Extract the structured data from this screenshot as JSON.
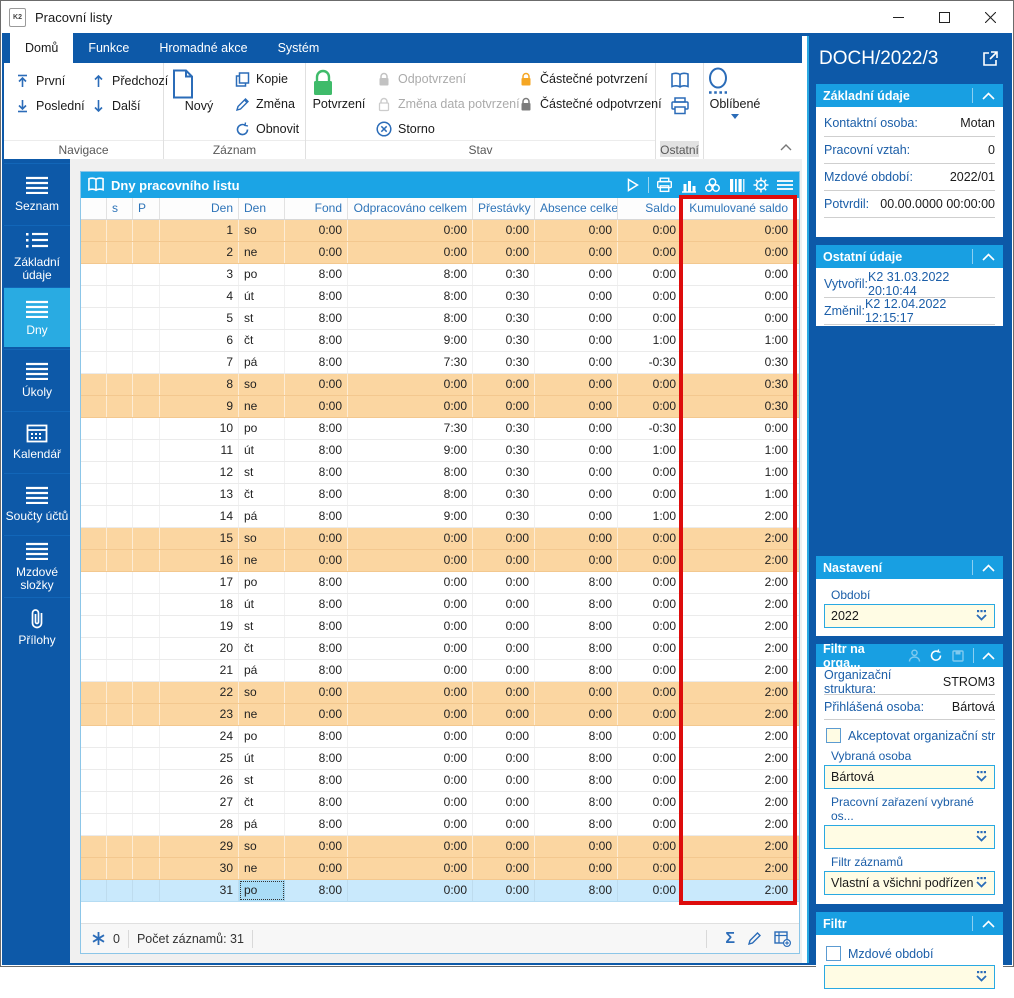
{
  "window": {
    "title": "Pracovní listy",
    "minimize": "—",
    "maximize": "▢",
    "close": "✕"
  },
  "ribbon": {
    "tabs": [
      {
        "label": "Domů",
        "active": true
      },
      {
        "label": "Funkce"
      },
      {
        "label": "Hromadné akce"
      },
      {
        "label": "Systém"
      }
    ],
    "tab_domu": "Domů",
    "tab_funkce": "Funkce",
    "tab_hromadne": "Hromadné akce",
    "tab_system": "Systém",
    "btn_prvni": "První",
    "btn_predchozi": "Předchozí",
    "btn_posledni": "Poslední",
    "btn_dalsi": "Další",
    "btn_novy": "Nový",
    "btn_kopie": "Kopie",
    "btn_zmena": "Změna",
    "btn_obnovit": "Obnovit",
    "btn_potvrzeni": "Potvrzení",
    "btn_odpotvrzeni": "Odpotvrzení",
    "btn_zmena_data": "Změna data potvrzení",
    "btn_storno": "Storno",
    "btn_castecne_potvrzeni": "Částečné potvrzení",
    "btn_castecne_odpotvrzeni": "Částečné odpotvrzení",
    "btn_oblibene": "Oblíbené",
    "grp_navigace": "Navigace",
    "grp_zaznam": "Záznam",
    "grp_stav": "Stav",
    "grp_ostatni": "Ostatní"
  },
  "sidebar": {
    "items": [
      {
        "label": "Seznam",
        "icon": "menu",
        "active": false
      },
      {
        "label": "Základní údaje",
        "icon": "menu-dotted",
        "active": false
      },
      {
        "label": "Dny",
        "icon": "menu",
        "active": true
      },
      {
        "label": "Úkoly",
        "icon": "menu",
        "active": false
      },
      {
        "label": "Kalendář",
        "icon": "calendar",
        "active": false
      },
      {
        "label": "Součty účtů",
        "icon": "menu",
        "active": false
      },
      {
        "label": "Mzdové složky",
        "icon": "menu",
        "active": false
      },
      {
        "label": "Přílohy",
        "icon": "paperclip",
        "active": false
      }
    ]
  },
  "table": {
    "title": "Dny pracovního listu",
    "columns": [
      "",
      "s",
      "P",
      "Den",
      "Den",
      "Fond",
      "Odpracováno celkem",
      "Přestávky",
      "Absence celkem",
      "Saldo",
      "Kumulované saldo"
    ],
    "highlighted_column": "Kumulované saldo",
    "rows": [
      {
        "d": 1,
        "day": "so",
        "f": "0:00",
        "o": "0:00",
        "p": "0:00",
        "a": "0:00",
        "s": "0:00",
        "k": "0:00",
        "w": true
      },
      {
        "d": 2,
        "day": "ne",
        "f": "0:00",
        "o": "0:00",
        "p": "0:00",
        "a": "0:00",
        "s": "0:00",
        "k": "0:00",
        "w": true
      },
      {
        "d": 3,
        "day": "po",
        "f": "8:00",
        "o": "8:00",
        "p": "0:30",
        "a": "0:00",
        "s": "0:00",
        "k": "0:00",
        "w": false
      },
      {
        "d": 4,
        "day": "út",
        "f": "8:00",
        "o": "8:00",
        "p": "0:30",
        "a": "0:00",
        "s": "0:00",
        "k": "0:00",
        "w": false
      },
      {
        "d": 5,
        "day": "st",
        "f": "8:00",
        "o": "8:00",
        "p": "0:30",
        "a": "0:00",
        "s": "0:00",
        "k": "0:00",
        "w": false
      },
      {
        "d": 6,
        "day": "čt",
        "f": "8:00",
        "o": "9:00",
        "p": "0:30",
        "a": "0:00",
        "s": "1:00",
        "k": "1:00",
        "w": false
      },
      {
        "d": 7,
        "day": "pá",
        "f": "8:00",
        "o": "7:30",
        "p": "0:30",
        "a": "0:00",
        "s": "-0:30",
        "k": "0:30",
        "w": false
      },
      {
        "d": 8,
        "day": "so",
        "f": "0:00",
        "o": "0:00",
        "p": "0:00",
        "a": "0:00",
        "s": "0:00",
        "k": "0:30",
        "w": true
      },
      {
        "d": 9,
        "day": "ne",
        "f": "0:00",
        "o": "0:00",
        "p": "0:00",
        "a": "0:00",
        "s": "0:00",
        "k": "0:30",
        "w": true
      },
      {
        "d": 10,
        "day": "po",
        "f": "8:00",
        "o": "7:30",
        "p": "0:30",
        "a": "0:00",
        "s": "-0:30",
        "k": "0:00",
        "w": false
      },
      {
        "d": 11,
        "day": "út",
        "f": "8:00",
        "o": "9:00",
        "p": "0:30",
        "a": "0:00",
        "s": "1:00",
        "k": "1:00",
        "w": false
      },
      {
        "d": 12,
        "day": "st",
        "f": "8:00",
        "o": "8:00",
        "p": "0:30",
        "a": "0:00",
        "s": "0:00",
        "k": "1:00",
        "w": false
      },
      {
        "d": 13,
        "day": "čt",
        "f": "8:00",
        "o": "8:00",
        "p": "0:30",
        "a": "0:00",
        "s": "0:00",
        "k": "1:00",
        "w": false
      },
      {
        "d": 14,
        "day": "pá",
        "f": "8:00",
        "o": "9:00",
        "p": "0:30",
        "a": "0:00",
        "s": "1:00",
        "k": "2:00",
        "w": false
      },
      {
        "d": 15,
        "day": "so",
        "f": "0:00",
        "o": "0:00",
        "p": "0:00",
        "a": "0:00",
        "s": "0:00",
        "k": "2:00",
        "w": true
      },
      {
        "d": 16,
        "day": "ne",
        "f": "0:00",
        "o": "0:00",
        "p": "0:00",
        "a": "0:00",
        "s": "0:00",
        "k": "2:00",
        "w": true
      },
      {
        "d": 17,
        "day": "po",
        "f": "8:00",
        "o": "0:00",
        "p": "0:00",
        "a": "8:00",
        "s": "0:00",
        "k": "2:00",
        "w": false
      },
      {
        "d": 18,
        "day": "út",
        "f": "8:00",
        "o": "0:00",
        "p": "0:00",
        "a": "8:00",
        "s": "0:00",
        "k": "2:00",
        "w": false
      },
      {
        "d": 19,
        "day": "st",
        "f": "8:00",
        "o": "0:00",
        "p": "0:00",
        "a": "8:00",
        "s": "0:00",
        "k": "2:00",
        "w": false
      },
      {
        "d": 20,
        "day": "čt",
        "f": "8:00",
        "o": "0:00",
        "p": "0:00",
        "a": "8:00",
        "s": "0:00",
        "k": "2:00",
        "w": false
      },
      {
        "d": 21,
        "day": "pá",
        "f": "8:00",
        "o": "0:00",
        "p": "0:00",
        "a": "8:00",
        "s": "0:00",
        "k": "2:00",
        "w": false
      },
      {
        "d": 22,
        "day": "so",
        "f": "0:00",
        "o": "0:00",
        "p": "0:00",
        "a": "0:00",
        "s": "0:00",
        "k": "2:00",
        "w": true
      },
      {
        "d": 23,
        "day": "ne",
        "f": "0:00",
        "o": "0:00",
        "p": "0:00",
        "a": "0:00",
        "s": "0:00",
        "k": "2:00",
        "w": true
      },
      {
        "d": 24,
        "day": "po",
        "f": "8:00",
        "o": "0:00",
        "p": "0:00",
        "a": "8:00",
        "s": "0:00",
        "k": "2:00",
        "w": false
      },
      {
        "d": 25,
        "day": "út",
        "f": "8:00",
        "o": "0:00",
        "p": "0:00",
        "a": "8:00",
        "s": "0:00",
        "k": "2:00",
        "w": false
      },
      {
        "d": 26,
        "day": "st",
        "f": "8:00",
        "o": "0:00",
        "p": "0:00",
        "a": "8:00",
        "s": "0:00",
        "k": "2:00",
        "w": false
      },
      {
        "d": 27,
        "day": "čt",
        "f": "8:00",
        "o": "0:00",
        "p": "0:00",
        "a": "8:00",
        "s": "0:00",
        "k": "2:00",
        "w": false
      },
      {
        "d": 28,
        "day": "pá",
        "f": "8:00",
        "o": "0:00",
        "p": "0:00",
        "a": "8:00",
        "s": "0:00",
        "k": "2:00",
        "w": false
      },
      {
        "d": 29,
        "day": "so",
        "f": "0:00",
        "o": "0:00",
        "p": "0:00",
        "a": "0:00",
        "s": "0:00",
        "k": "2:00",
        "w": true
      },
      {
        "d": 30,
        "day": "ne",
        "f": "0:00",
        "o": "0:00",
        "p": "0:00",
        "a": "0:00",
        "s": "0:00",
        "k": "2:00",
        "w": true
      },
      {
        "d": 31,
        "day": "po",
        "f": "8:00",
        "o": "0:00",
        "p": "0:00",
        "a": "8:00",
        "s": "0:00",
        "k": "2:00",
        "w": false,
        "selected": true
      }
    ],
    "status": {
      "star_count": "0",
      "record_count": "Počet záznamů: 31"
    }
  },
  "right_panel": {
    "record_title": "DOCH/2022/3",
    "zakladni": {
      "title": "Základní údaje",
      "fields": [
        [
          "Kontaktní osoba:",
          "Motan"
        ],
        [
          "Pracovní vztah:",
          "0"
        ],
        [
          "Mzdové období:",
          "2022/01"
        ],
        [
          "Potvrdil:",
          "00.00.0000 00:00:00"
        ]
      ]
    },
    "ostatni": {
      "title": "Ostatní údaje",
      "fields": [
        [
          "Vytvořil:",
          "K2 31.03.2022 20:10:44"
        ],
        [
          "Změnil:",
          "K2 12.04.2022 12:15:17"
        ]
      ]
    },
    "nastaveni": {
      "title": "Nastavení",
      "obdobi_label": "Období",
      "obdobi_value": "2022"
    },
    "filtr_org": {
      "title": "Filtr na orga...",
      "org_label": "Organizační struktura:",
      "org_value": "STROM3",
      "osoba_label": "Přihlášená osoba:",
      "osoba_value": "Bártová",
      "checkbox_label": "Akceptovat organizační str...",
      "vybrana_label": "Vybraná osoba",
      "vybrana_value": "Bártová",
      "zarazeni_label": "Pracovní zařazení vybrané os...",
      "zarazeni_value": "",
      "filtr_zaznamu_label": "Filtr záznamů",
      "filtr_zaznamu_value": "Vlastní a všichni podřízení"
    },
    "filtr": {
      "title": "Filtr",
      "checkbox_label": "Mzdové období",
      "value": ""
    }
  },
  "icons": {
    "k2-logo": "K2 document badge",
    "minimize-icon": "—",
    "maximize-icon": "□",
    "close-icon": "✕",
    "first-icon": "arrow up to bar",
    "last-icon": "arrow down to bar",
    "previous-icon": "arrow up",
    "next-icon": "arrow down",
    "new-document-icon": "page with folded corner",
    "copy-icon": "two pages",
    "edit-pencil-icon": "pencil",
    "refresh-icon": "circular arrows",
    "confirm-lock-icon": "green lock",
    "unconfirm-lock-icon": "gray lock",
    "partial-confirm-lock-icon": "orange lock",
    "partial-unconfirm-lock-icon": "dark gray lock",
    "cancel-icon": "circle with x",
    "book-icon": "open book",
    "print-icon": "printer",
    "favorites-icon": "letter O with dashed underline",
    "dropdown-arrow-icon": "▾",
    "collapse-chevron-icon": "^",
    "menu-icon": "stacked lines",
    "menu-dotted-icon": "dotted list",
    "calendar-icon": "calendar grid",
    "paperclip-icon": "paperclip",
    "play-icon": "triangle",
    "chart-icon": "bar chart",
    "circles-icon": "three circles",
    "columns-icon": "vertical bars",
    "gear-icon": "gear",
    "asterisk-icon": "blue asterisk",
    "sum-icon": "Σ",
    "table-add-icon": "table with plus",
    "person-icon": "person bust",
    "save-icon": "small box",
    "external-link-icon": "square with arrow",
    "combo-chevron-icon": "dotted chevron down"
  },
  "colors": {
    "dark_blue": "#0d59a8",
    "accent_blue": "#189fe2",
    "sidebar_active": "#29abe2",
    "weekend_row": "#fbd6a1",
    "selected_row": "#c9e9fc",
    "combo_yellow": "#fffce4",
    "header_text": "#2e74b8",
    "highlight_red": "#dd0c0c",
    "confirm_green": "#3fbb6a",
    "partial_orange": "#f5a623"
  }
}
